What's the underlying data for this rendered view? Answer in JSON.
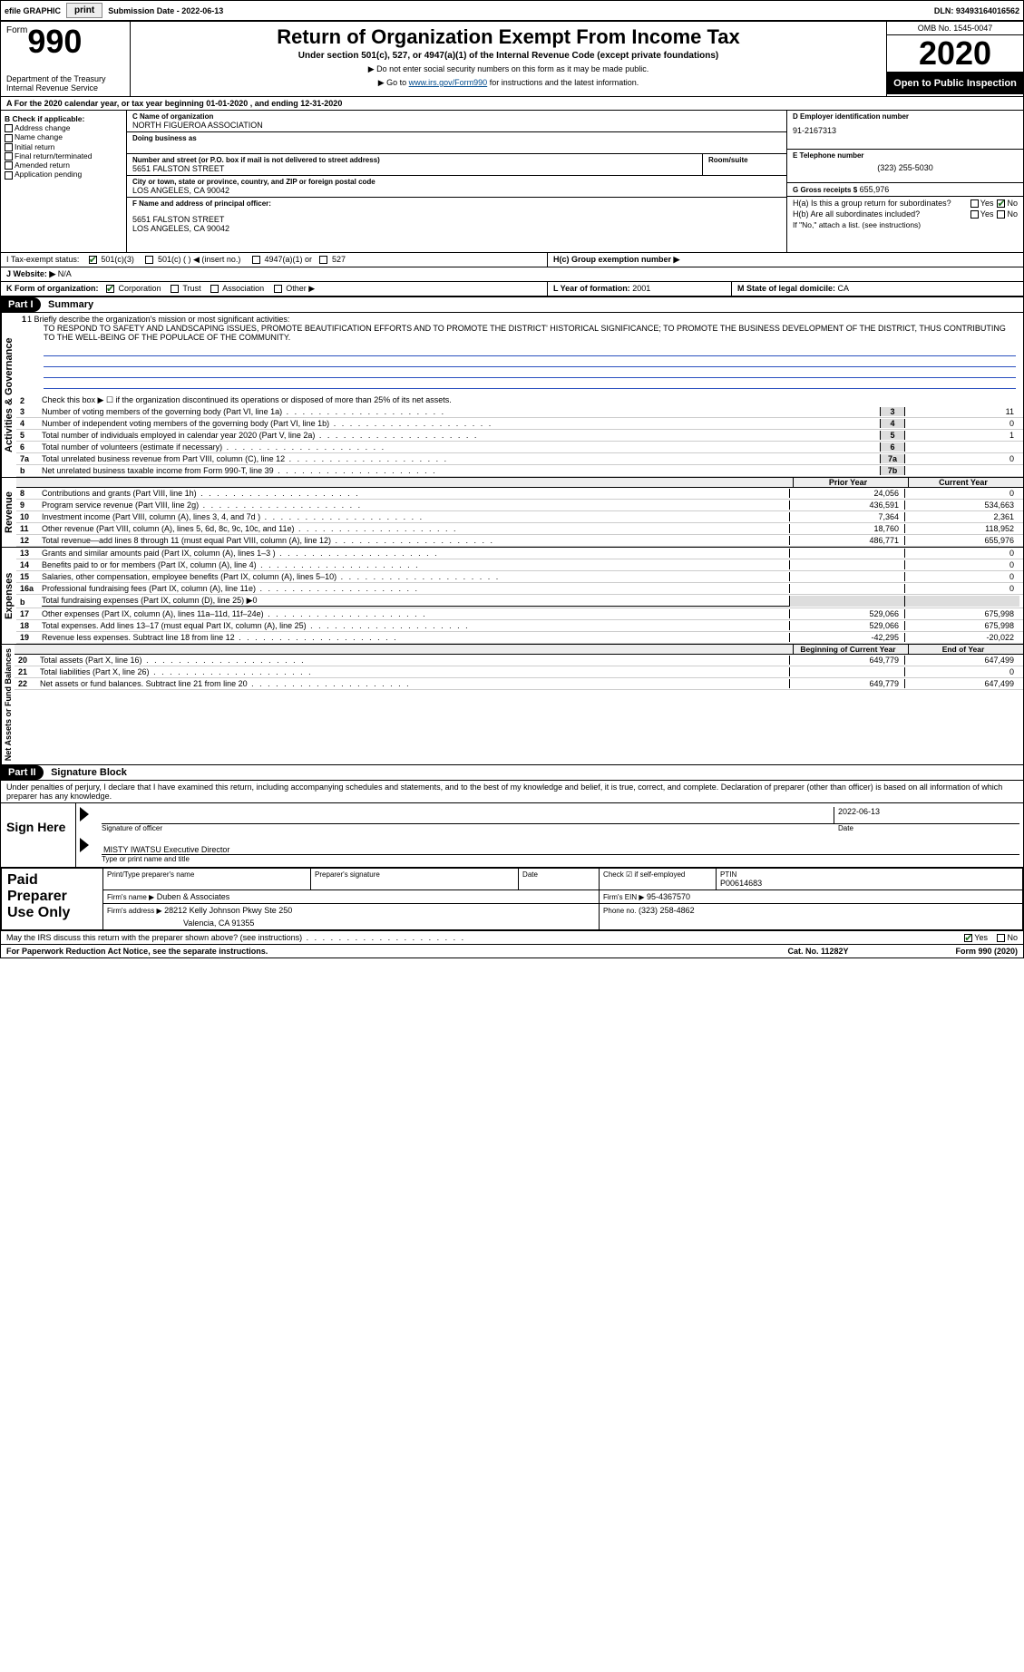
{
  "colors": {
    "header_black": "#000000",
    "link_blue": "#004b8d",
    "check_green": "#1a6b1a",
    "numcell_bg": "#dddddd",
    "hdr_bg": "#eeeeee"
  },
  "topbar": {
    "efile": "efile GRAPHIC",
    "print": "print",
    "sub_label": "Submission Date - ",
    "sub_date": "2022-06-13",
    "dln": "DLN: 93493164016562"
  },
  "header": {
    "form_word": "Form",
    "form_num": "990",
    "title": "Return of Organization Exempt From Income Tax",
    "sub": "Under section 501(c), 527, or 4947(a)(1) of the Internal Revenue Code (except private foundations)",
    "note1": "▶ Do not enter social security numbers on this form as it may be made public.",
    "note2": "▶ Go to ",
    "note2_link": "www.irs.gov/Form990",
    "note2_tail": " for instructions and the latest information.",
    "dept": "Department of the Treasury\nInternal Revenue Service",
    "omb": "OMB No. 1545-0047",
    "year": "2020",
    "open": "Open to Public Inspection"
  },
  "rowA": "A For the 2020 calendar year, or tax year beginning 01-01-2020    , and ending 12-31-2020",
  "boxB": {
    "head": "B Check if applicable:",
    "items": [
      "Address change",
      "Name change",
      "Initial return",
      "Final return/terminated",
      "Amended return",
      "Application pending"
    ]
  },
  "boxC": {
    "label_name": "C Name of organization",
    "org": "NORTH FIGUEROA ASSOCIATION",
    "dba_label": "Doing business as",
    "addr_label": "Number and street (or P.O. box if mail is not delivered to street address)",
    "room_label": "Room/suite",
    "addr": "5651 FALSTON STREET",
    "city_label": "City or town, state or province, country, and ZIP or foreign postal code",
    "city": "LOS ANGELES, CA  90042"
  },
  "boxD": {
    "label": "D Employer identification number",
    "val": "91-2167313"
  },
  "boxE": {
    "label": "E Telephone number",
    "val": "(323) 255-5030"
  },
  "boxG": {
    "label": "G Gross receipts $",
    "val": "655,976"
  },
  "boxF": {
    "label": "F Name and address of principal officer:",
    "addr1": "5651 FALSTON STREET",
    "addr2": "LOS ANGELES, CA  90042"
  },
  "boxH": {
    "a_label": "H(a)  Is this a group return for subordinates?",
    "b_label": "H(b)  Are all subordinates included?",
    "note": "If \"No,\" attach a list. (see instructions)",
    "c_label": "H(c)  Group exemption number ▶",
    "yes": "Yes",
    "no": "No"
  },
  "rowI": {
    "label": "I   Tax-exempt status:",
    "opts": [
      "501(c)(3)",
      "501(c) (  ) ◀ (insert no.)",
      "4947(a)(1) or",
      "527"
    ]
  },
  "rowJ": {
    "label": "J   Website: ▶",
    "val": "N/A"
  },
  "rowK": {
    "label": "K Form of organization:",
    "opts": [
      "Corporation",
      "Trust",
      "Association",
      "Other ▶"
    ]
  },
  "rowL": {
    "label": "L Year of formation:",
    "val": "2001"
  },
  "rowM": {
    "label": "M State of legal domicile:",
    "val": "CA"
  },
  "part1": {
    "tag": "Part I",
    "title": "Summary"
  },
  "summary": {
    "l1_label": "1  Briefly describe the organization's mission or most significant activities:",
    "mission": "TO RESPOND TO SAFETY AND LANDSCAPING ISSUES, PROMOTE BEAUTIFICATION EFFORTS AND TO PROMOTE THE DISTRICT' HISTORICAL SIGNIFICANCE; TO PROMOTE THE BUSINESS DEVELOPMENT OF THE DISTRICT, THUS CONTRIBUTING TO THE WELL-BEING OF THE POPULACE OF THE COMMUNITY.",
    "l2": "Check this box ▶ ☐ if the organization discontinued its operations or disposed of more than 25% of its net assets.",
    "vtab_ag": "Activities & Governance",
    "vtab_rev": "Revenue",
    "vtab_exp": "Expenses",
    "vtab_net": "Net Assets or Fund Balances",
    "rows_ag": [
      {
        "n": "3",
        "t": "Number of voting members of the governing body (Part VI, line 1a)",
        "c": "3",
        "v": "11"
      },
      {
        "n": "4",
        "t": "Number of independent voting members of the governing body (Part VI, line 1b)",
        "c": "4",
        "v": "0"
      },
      {
        "n": "5",
        "t": "Total number of individuals employed in calendar year 2020 (Part V, line 2a)",
        "c": "5",
        "v": "1"
      },
      {
        "n": "6",
        "t": "Total number of volunteers (estimate if necessary)",
        "c": "6",
        "v": ""
      },
      {
        "n": "7a",
        "t": "Total unrelated business revenue from Part VIII, column (C), line 12",
        "c": "7a",
        "v": "0"
      },
      {
        "n": "b",
        "t": "Net unrelated business taxable income from Form 990-T, line 39",
        "c": "7b",
        "v": ""
      }
    ],
    "col_prior": "Prior Year",
    "col_curr": "Current Year",
    "rows_rev": [
      {
        "n": "8",
        "t": "Contributions and grants (Part VIII, line 1h)",
        "p": "24,056",
        "c": "0"
      },
      {
        "n": "9",
        "t": "Program service revenue (Part VIII, line 2g)",
        "p": "436,591",
        "c": "534,663"
      },
      {
        "n": "10",
        "t": "Investment income (Part VIII, column (A), lines 3, 4, and 7d )",
        "p": "7,364",
        "c": "2,361"
      },
      {
        "n": "11",
        "t": "Other revenue (Part VIII, column (A), lines 5, 6d, 8c, 9c, 10c, and 11e)",
        "p": "18,760",
        "c": "118,952"
      },
      {
        "n": "12",
        "t": "Total revenue—add lines 8 through 11 (must equal Part VIII, column (A), line 12)",
        "p": "486,771",
        "c": "655,976"
      }
    ],
    "rows_exp": [
      {
        "n": "13",
        "t": "Grants and similar amounts paid (Part IX, column (A), lines 1–3 )",
        "p": "",
        "c": "0"
      },
      {
        "n": "14",
        "t": "Benefits paid to or for members (Part IX, column (A), line 4)",
        "p": "",
        "c": "0"
      },
      {
        "n": "15",
        "t": "Salaries, other compensation, employee benefits (Part IX, column (A), lines 5–10)",
        "p": "",
        "c": "0"
      },
      {
        "n": "16a",
        "t": "Professional fundraising fees (Part IX, column (A), line 11e)",
        "p": "",
        "c": "0"
      },
      {
        "n": "b",
        "t": "Total fundraising expenses (Part IX, column (D), line 25) ▶0",
        "p": "",
        "c": "",
        "noval": true
      },
      {
        "n": "17",
        "t": "Other expenses (Part IX, column (A), lines 11a–11d, 11f–24e)",
        "p": "529,066",
        "c": "675,998"
      },
      {
        "n": "18",
        "t": "Total expenses. Add lines 13–17 (must equal Part IX, column (A), line 25)",
        "p": "529,066",
        "c": "675,998"
      },
      {
        "n": "19",
        "t": "Revenue less expenses. Subtract line 18 from line 12",
        "p": "-42,295",
        "c": "-20,022"
      }
    ],
    "col_boy": "Beginning of Current Year",
    "col_eoy": "End of Year",
    "rows_net": [
      {
        "n": "20",
        "t": "Total assets (Part X, line 16)",
        "p": "649,779",
        "c": "647,499"
      },
      {
        "n": "21",
        "t": "Total liabilities (Part X, line 26)",
        "p": "",
        "c": "0"
      },
      {
        "n": "22",
        "t": "Net assets or fund balances. Subtract line 21 from line 20",
        "p": "649,779",
        "c": "647,499"
      }
    ]
  },
  "part2": {
    "tag": "Part II",
    "title": "Signature Block"
  },
  "sig": {
    "perjury": "Under penalties of perjury, I declare that I have examined this return, including accompanying schedules and statements, and to the best of my knowledge and belief, it is true, correct, and complete. Declaration of preparer (other than officer) is based on all information of which preparer has any knowledge.",
    "sign_here": "Sign Here",
    "sig_officer": "Signature of officer",
    "date_lbl": "Date",
    "sig_date": "2022-06-13",
    "name": "MISTY IWATSU Executive Director",
    "name_lbl": "Type or print name and title"
  },
  "preparer": {
    "left": "Paid Preparer Use Only",
    "h_name": "Print/Type preparer's name",
    "h_sig": "Preparer's signature",
    "h_date": "Date",
    "h_chk": "Check ☑ if self-employed",
    "h_ptin": "PTIN",
    "ptin": "P00614683",
    "firm_lbl": "Firm's name      ▶",
    "firm": "Duben & Associates",
    "ein_lbl": "Firm's EIN ▶",
    "ein": "95-4367570",
    "addr_lbl": "Firm's address ▶",
    "addr1": "28212 Kelly Johnson Pkwy Ste 250",
    "addr2": "Valencia, CA  91355",
    "phone_lbl": "Phone no.",
    "phone": "(323) 258-4862"
  },
  "bottom": {
    "discuss": "May the IRS discuss this return with the preparer shown above? (see instructions)",
    "yes": "Yes",
    "no": "No"
  },
  "footer": {
    "pra": "For Paperwork Reduction Act Notice, see the separate instructions.",
    "cat": "Cat. No. 11282Y",
    "form": "Form 990 (2020)"
  }
}
